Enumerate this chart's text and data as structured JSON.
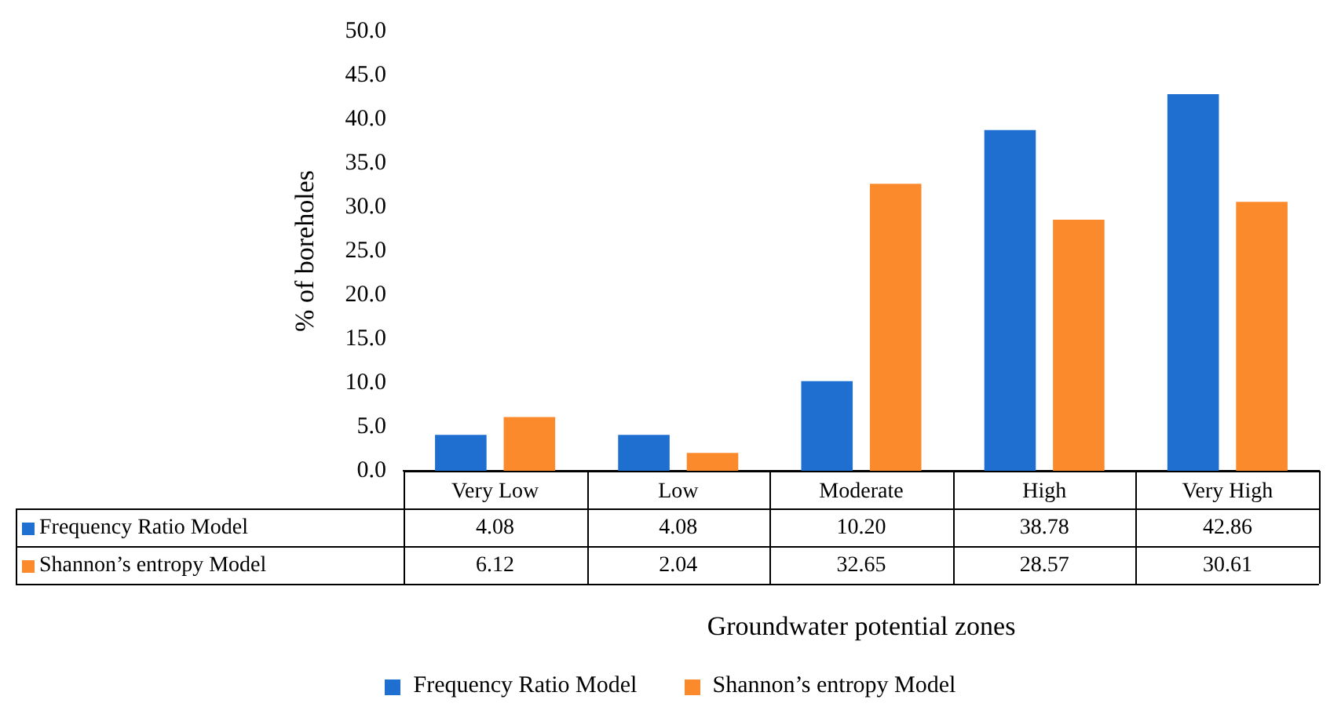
{
  "chart_data": {
    "type": "bar",
    "xlabel": "Groundwater potential zones",
    "ylabel": "% of boreholes",
    "categories": [
      "Very Low",
      "Low",
      "Moderate",
      "High",
      "Very High"
    ],
    "series": [
      {
        "name": "Frequency Ratio Model",
        "color": "#1f6fd1",
        "values": [
          4.08,
          4.08,
          10.2,
          38.78,
          42.86
        ],
        "value_labels": [
          "4.08",
          "4.08",
          "10.20",
          "38.78",
          "42.86"
        ]
      },
      {
        "name": "Shannon’s entropy Model",
        "color": "#fb8a2c",
        "values": [
          6.12,
          2.04,
          32.65,
          28.57,
          30.61
        ],
        "value_labels": [
          "6.12",
          "2.04",
          "32.65",
          "28.57",
          "30.61"
        ]
      }
    ],
    "ylim": [
      0,
      50
    ],
    "yticks": [
      {
        "value": 0,
        "label": "0.0"
      },
      {
        "value": 5,
        "label": "5.0"
      },
      {
        "value": 10,
        "label": "10.0"
      },
      {
        "value": 15,
        "label": "15.0"
      },
      {
        "value": 20,
        "label": "20.0"
      },
      {
        "value": 25,
        "label": "25.0"
      },
      {
        "value": 30,
        "label": "30.0"
      },
      {
        "value": 35,
        "label": "35.0"
      },
      {
        "value": 40,
        "label": "40.0"
      },
      {
        "value": 45,
        "label": "45.0"
      },
      {
        "value": 50,
        "label": "50.0"
      }
    ],
    "grid": false,
    "legend": "bottom"
  }
}
